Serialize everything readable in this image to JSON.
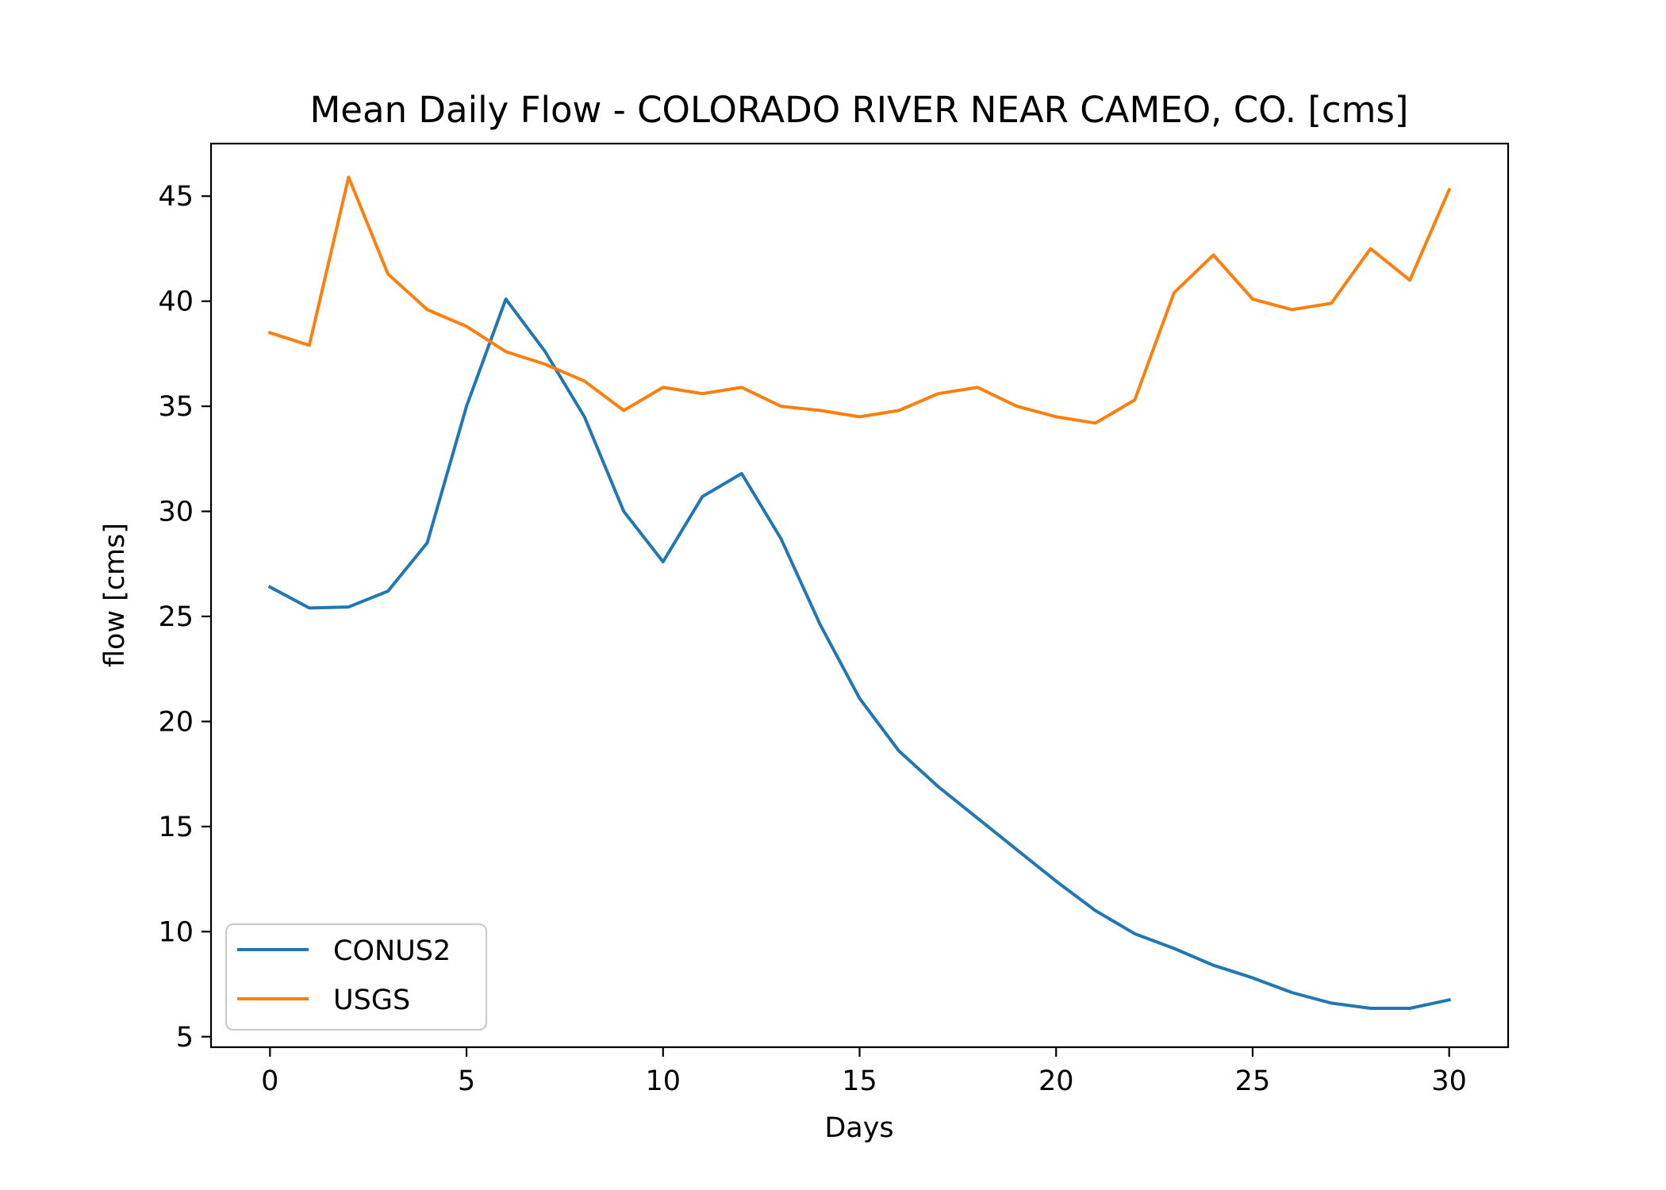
{
  "chart_data": {
    "type": "line",
    "title": "Mean Daily Flow - COLORADO RIVER NEAR CAMEO, CO. [cms]",
    "xlabel": "Days",
    "ylabel": "flow [cms]",
    "xlim": [
      -1.5,
      31.5
    ],
    "ylim": [
      4.5,
      47.5
    ],
    "xticks": [
      0,
      5,
      10,
      15,
      20,
      25,
      30
    ],
    "yticks": [
      5,
      10,
      15,
      20,
      25,
      30,
      35,
      40,
      45
    ],
    "grid": false,
    "legend_position": "lower-left",
    "x": [
      0,
      1,
      2,
      3,
      4,
      5,
      6,
      7,
      8,
      9,
      10,
      11,
      12,
      13,
      14,
      15,
      16,
      17,
      18,
      19,
      20,
      21,
      22,
      23,
      24,
      25,
      26,
      27,
      28,
      29,
      30
    ],
    "series": [
      {
        "name": "CONUS2",
        "color": "#1f77b4",
        "values": [
          26.4,
          25.4,
          25.45,
          26.2,
          28.5,
          35.0,
          40.1,
          37.6,
          34.5,
          30.0,
          27.6,
          30.7,
          31.8,
          28.7,
          24.6,
          21.1,
          18.6,
          16.9,
          15.4,
          13.9,
          12.4,
          11.0,
          9.9,
          9.2,
          8.4,
          7.8,
          7.1,
          6.6,
          6.35,
          6.35,
          6.75
        ]
      },
      {
        "name": "USGS",
        "color": "#ff7f0e",
        "values": [
          38.5,
          37.9,
          45.9,
          41.3,
          39.6,
          38.8,
          37.6,
          37.0,
          36.2,
          34.8,
          35.9,
          35.6,
          35.9,
          35.0,
          34.8,
          34.5,
          34.8,
          35.6,
          35.9,
          35.0,
          34.5,
          34.2,
          35.3,
          40.4,
          42.2,
          40.1,
          39.6,
          39.9,
          42.5,
          41.0,
          45.3
        ]
      }
    ]
  }
}
